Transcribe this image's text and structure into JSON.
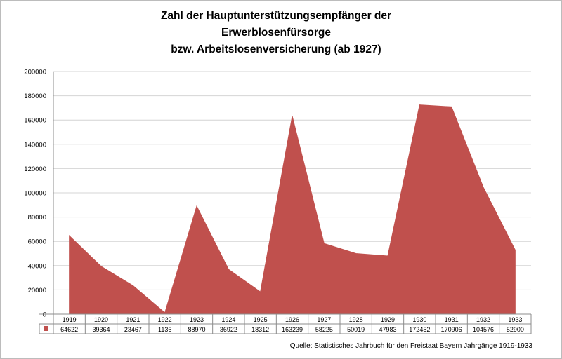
{
  "chart_data": {
    "type": "area",
    "title_lines": [
      "Zahl der Hauptunterstützungsempfänger der",
      "Erwerblosenfürsorge",
      "bzw. Arbeitslosenversicherung (ab 1927)"
    ],
    "categories": [
      "1919",
      "1920",
      "1921",
      "1922",
      "1923",
      "1924",
      "1925",
      "1926",
      "1927",
      "1928",
      "1929",
      "1930",
      "1931",
      "1932",
      "1933"
    ],
    "series": [
      {
        "values": [
          64622,
          39364,
          23467,
          1136,
          88970,
          36922,
          18312,
          163239,
          58225,
          50019,
          47983,
          172452,
          170906,
          104576,
          52900
        ],
        "color": "#c0504d"
      }
    ],
    "y_ticks": [
      "0",
      "20000",
      "40000",
      "60000",
      "80000",
      "100000",
      "120000",
      "140000",
      "160000",
      "180000",
      "200000"
    ],
    "ylim": [
      0,
      200000
    ],
    "grid": true,
    "data_table": true
  },
  "source": "Quelle: Statistisches Jahrbuch für den Freistaat Bayern Jahrgänge 1919-1933"
}
